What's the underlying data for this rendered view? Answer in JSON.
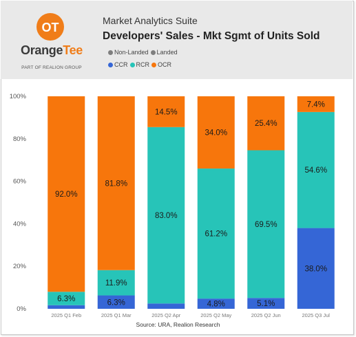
{
  "header": {
    "app_name": "Market Analytics Suite",
    "chart_title": "Developers' Sales - Mkt Sgmt of Units Sold",
    "logo": {
      "wordmark_a": "Orange",
      "wordmark_b": "Tee",
      "tagline": "PART OF REALION GROUP",
      "glyph": "OT"
    },
    "legend_row1": [
      {
        "label": "Non-Landed",
        "color": "#7f7f7f"
      },
      {
        "label": "Landed",
        "color": "#7f7f7f"
      }
    ],
    "legend_row2": [
      {
        "label": "CCR",
        "color": "#3566d6"
      },
      {
        "label": "RCR",
        "color": "#27c4b8"
      },
      {
        "label": "OCR",
        "color": "#f7760c"
      }
    ]
  },
  "colors": {
    "CCR": "#3566d6",
    "RCR": "#27c4b8",
    "OCR": "#f7760c"
  },
  "chart_data": {
    "type": "bar",
    "stacked": true,
    "categories": [
      "2025 Q1 Feb",
      "2025 Q1 Mar",
      "2025 Q2 Apr",
      "2025 Q2 May",
      "2025 Q2 Jun",
      "2025 Q3 Jul"
    ],
    "series": [
      {
        "name": "CCR",
        "values": [
          1.7,
          6.3,
          2.5,
          4.8,
          5.1,
          38.0
        ],
        "labels": [
          "",
          "6.3%",
          "",
          "4.8%",
          "5.1%",
          "38.0%"
        ]
      },
      {
        "name": "RCR",
        "values": [
          6.3,
          11.9,
          83.0,
          61.2,
          69.5,
          54.6
        ],
        "labels": [
          "6.3%",
          "11.9%",
          "83.0%",
          "61.2%",
          "69.5%",
          "54.6%"
        ]
      },
      {
        "name": "OCR",
        "values": [
          92.0,
          81.8,
          14.5,
          34.0,
          25.4,
          7.4
        ],
        "labels": [
          "92.0%",
          "81.8%",
          "14.5%",
          "34.0%",
          "25.4%",
          "7.4%"
        ]
      }
    ],
    "ylim": [
      0,
      100
    ],
    "yticks": [
      "0%",
      "20%",
      "40%",
      "60%",
      "80%",
      "100%"
    ],
    "grid": false,
    "legend_position": "top"
  },
  "source_note": "Source: URA, Realion Research"
}
